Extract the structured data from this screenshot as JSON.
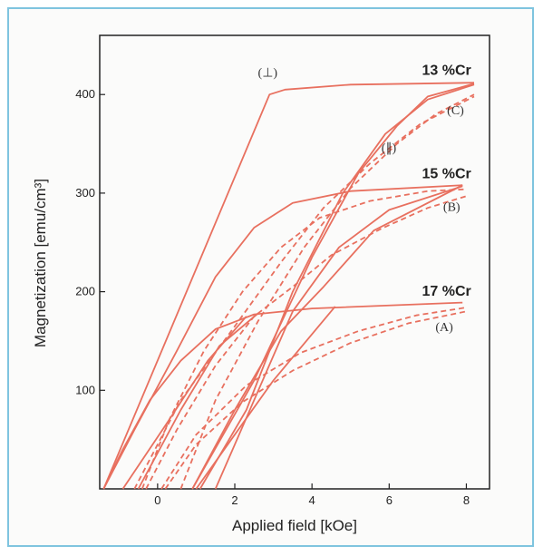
{
  "chart_data": {
    "type": "line",
    "title": "",
    "xlabel": "Applied field [kOe]",
    "ylabel": "Magnetization [emu/cm³]",
    "xlim": [
      -1.5,
      8.6
    ],
    "ylim": [
      0,
      460
    ],
    "x_ticks": [
      0,
      2,
      4,
      6,
      8
    ],
    "x_tick_labels": [
      "0",
      "2",
      "4",
      "6",
      "8"
    ],
    "y_ticks": [
      100,
      200,
      300,
      400
    ],
    "y_tick_labels": [
      "100",
      "200",
      "300",
      "400"
    ],
    "grid": false,
    "colors": {
      "curve": "#e8705f",
      "text": "#222222",
      "frame": "#7fc4df"
    },
    "labels": [
      {
        "text": "13 %Cr",
        "x": 6.85,
        "y": 420
      },
      {
        "text": "15 %Cr",
        "x": 6.85,
        "y": 315
      },
      {
        "text": "17 %Cr",
        "x": 6.85,
        "y": 196
      }
    ],
    "annotations": [
      {
        "text": "(⊥)",
        "x": 2.6,
        "y": 418
      },
      {
        "text": "(C)",
        "x": 7.5,
        "y": 380
      },
      {
        "text": "(∥)",
        "x": 5.8,
        "y": 342
      },
      {
        "text": "(B)",
        "x": 7.4,
        "y": 282
      },
      {
        "text": "(A)",
        "x": 7.2,
        "y": 160
      }
    ],
    "series": [
      {
        "style": "solid",
        "points": [
          [
            -1.4,
            0
          ],
          [
            2.9,
            400
          ],
          [
            3.3,
            405
          ],
          [
            5,
            410
          ],
          [
            8.2,
            412
          ]
        ]
      },
      {
        "style": "solid",
        "points": [
          [
            -1.4,
            0
          ],
          [
            -0.6,
            60
          ],
          [
            0.5,
            140
          ],
          [
            1.5,
            215
          ],
          [
            2.5,
            265
          ],
          [
            3.5,
            290
          ],
          [
            5,
            302
          ],
          [
            7.9,
            308
          ]
        ]
      },
      {
        "style": "solid",
        "points": [
          [
            -1.4,
            0
          ],
          [
            -0.9,
            40
          ],
          [
            -0.2,
            90
          ],
          [
            0.6,
            130
          ],
          [
            1.5,
            162
          ],
          [
            2.5,
            177
          ],
          [
            4,
            183
          ],
          [
            7.9,
            189
          ]
        ]
      },
      {
        "style": "solid",
        "points": [
          [
            -0.5,
            0
          ],
          [
            0.6,
            80
          ],
          [
            1.6,
            145
          ],
          [
            2.6,
            178
          ]
        ]
      },
      {
        "style": "solid",
        "points": [
          [
            -0.9,
            0
          ],
          [
            0.3,
            70
          ],
          [
            1.3,
            130
          ],
          [
            2.3,
            175
          ]
        ]
      },
      {
        "style": "solid",
        "points": [
          [
            0.9,
            0
          ],
          [
            2.5,
            110
          ],
          [
            4,
            235
          ],
          [
            5.2,
            320
          ],
          [
            6.2,
            368
          ],
          [
            7,
            398
          ],
          [
            8.2,
            411
          ]
        ]
      },
      {
        "style": "solid",
        "points": [
          [
            1.1,
            0
          ],
          [
            2.3,
            80
          ],
          [
            3.5,
            200
          ],
          [
            4.8,
            300
          ],
          [
            5.9,
            360
          ],
          [
            7,
            395
          ],
          [
            8.2,
            410
          ]
        ]
      },
      {
        "style": "solid",
        "points": [
          [
            1.5,
            0
          ],
          [
            2.5,
            90
          ],
          [
            3.5,
            180
          ],
          [
            4.7,
            245
          ],
          [
            6,
            283
          ],
          [
            7.9,
            307
          ]
        ]
      },
      {
        "style": "solid",
        "points": [
          [
            0.9,
            0
          ],
          [
            2,
            80
          ],
          [
            3.2,
            160
          ],
          [
            4.3,
            205
          ],
          [
            5.6,
            262
          ],
          [
            7.9,
            308
          ]
        ]
      },
      {
        "style": "solid",
        "points": [
          [
            1,
            0
          ],
          [
            2,
            55
          ],
          [
            3,
            110
          ],
          [
            4.6,
            185
          ]
        ]
      },
      {
        "style": "dashed",
        "points": [
          [
            -0.3,
            0
          ],
          [
            0.5,
            60
          ],
          [
            1.5,
            125
          ],
          [
            2.5,
            175
          ],
          [
            3.5,
            205
          ],
          [
            4.5,
            237
          ],
          [
            5.8,
            264
          ],
          [
            7,
            285
          ],
          [
            8,
            297
          ]
        ]
      },
      {
        "style": "dashed",
        "points": [
          [
            -0.4,
            0
          ],
          [
            0.3,
            70
          ],
          [
            1.2,
            140
          ],
          [
            2.2,
            200
          ],
          [
            3.2,
            245
          ],
          [
            4.2,
            275
          ],
          [
            5.5,
            292
          ],
          [
            7,
            302
          ],
          [
            8,
            304
          ]
        ]
      },
      {
        "style": "dashed",
        "points": [
          [
            -0.6,
            0
          ],
          [
            0.6,
            90
          ],
          [
            2,
            165
          ],
          [
            3.2,
            230
          ],
          [
            4.3,
            285
          ],
          [
            5.5,
            330
          ],
          [
            6.8,
            370
          ],
          [
            8.2,
            398
          ]
        ]
      },
      {
        "style": "dashed",
        "points": [
          [
            0.6,
            0
          ],
          [
            1.5,
            90
          ],
          [
            2.6,
            170
          ],
          [
            3.8,
            245
          ],
          [
            5,
            305
          ],
          [
            6.2,
            350
          ],
          [
            7.2,
            380
          ],
          [
            8.2,
            400
          ]
        ]
      },
      {
        "style": "dashed",
        "points": [
          [
            0.2,
            0
          ],
          [
            1,
            45
          ],
          [
            2.2,
            88
          ],
          [
            3.5,
            120
          ],
          [
            5,
            148
          ],
          [
            6.5,
            168
          ],
          [
            8,
            180
          ]
        ]
      },
      {
        "style": "dashed",
        "points": [
          [
            0.1,
            0
          ],
          [
            1,
            55
          ],
          [
            2.3,
            105
          ],
          [
            3.7,
            138
          ],
          [
            5.2,
            160
          ],
          [
            6.7,
            176
          ],
          [
            8,
            184
          ]
        ]
      }
    ]
  }
}
